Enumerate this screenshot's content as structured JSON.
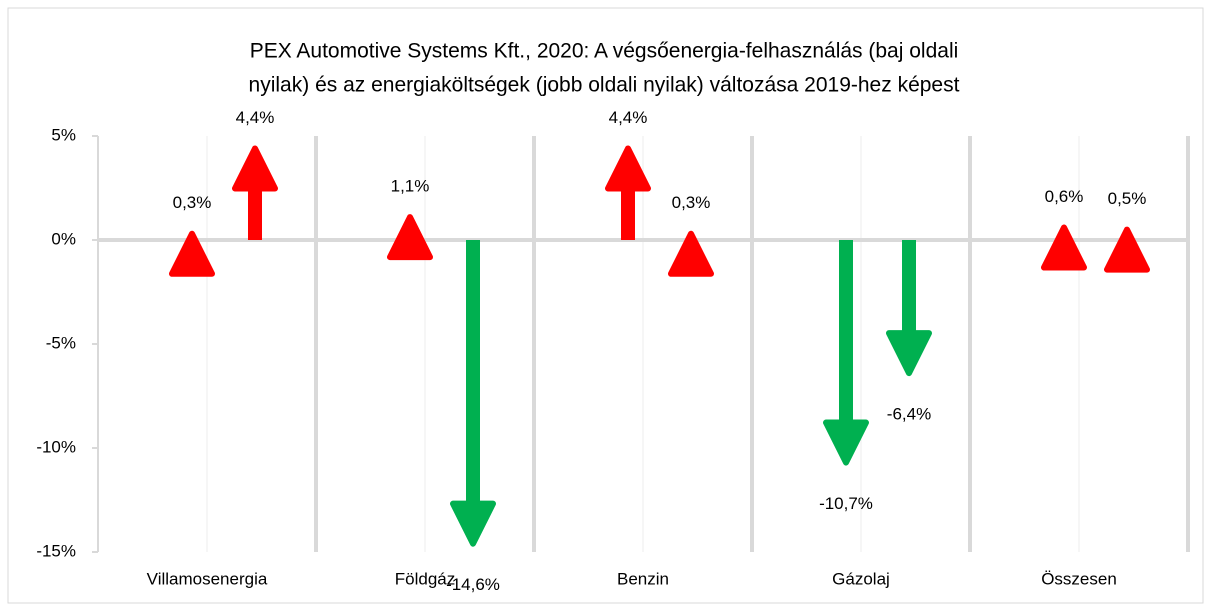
{
  "chart_data": {
    "type": "arrow",
    "title": [
      "PEX Automotive Systems Kft., 2020: A végsőenergia-felhasználás (baj oldali",
      "nyilak) és az energiaköltségek (jobb oldali nyilak) változása 2019-hez képest"
    ],
    "categories": [
      "Villamosenergia",
      "Földgáz",
      "Benzin",
      "Gázolaj",
      "Összesen"
    ],
    "series": [
      {
        "values": [
          0.3,
          1.1,
          4.4,
          -10.7,
          0.6
        ],
        "value_labels": [
          "0,3%",
          "1,1%",
          "4,4%",
          "-10,7%",
          "0,6%"
        ]
      },
      {
        "values": [
          4.4,
          -14.6,
          0.3,
          -6.4,
          0.5
        ],
        "value_labels": [
          "4,4%",
          "-14,6%",
          "0,3%",
          "-6,4%",
          "0,5%"
        ]
      }
    ],
    "color_up": "#ff0000",
    "color_down": "#00b050",
    "ylim": [
      -15,
      5
    ],
    "yticks": [
      {
        "value": 5,
        "label": "5%"
      },
      {
        "value": 0,
        "label": "0%"
      },
      {
        "value": -5,
        "label": "-5%"
      },
      {
        "value": -10,
        "label": "-10%"
      },
      {
        "value": -15,
        "label": "-15%"
      }
    ]
  }
}
